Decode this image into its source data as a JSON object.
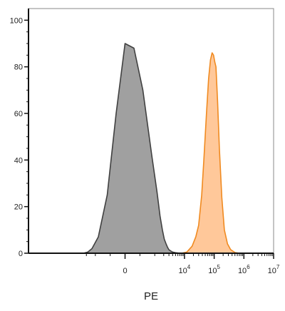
{
  "chart_data": {
    "type": "area",
    "xlabel": "PE",
    "ylabel": "",
    "x_scale": "biexponential",
    "ylim": [
      0,
      105
    ],
    "y_ticks": [
      0,
      20,
      40,
      60,
      80,
      100
    ],
    "y_tick_labels": [
      "0",
      "20",
      "40",
      "60",
      "80",
      "100"
    ],
    "x_ticks": [
      0,
      10000,
      100000,
      1000000,
      10000000
    ],
    "x_tick_labels": [
      {
        "base": "0",
        "exp": ""
      },
      {
        "base": "10",
        "exp": "4"
      },
      {
        "base": "10",
        "exp": "5"
      },
      {
        "base": "10",
        "exp": "6"
      },
      {
        "base": "10",
        "exp": "7"
      }
    ],
    "grid": false,
    "series": [
      {
        "color": "#a0a0a0",
        "edge_color": "#404040",
        "x": [
          -2500,
          -1800,
          -1300,
          -900,
          -600,
          -300,
          0,
          300,
          600,
          900,
          1200,
          1500,
          1800,
          2100,
          2400,
          2700,
          3000,
          3400,
          3800,
          4300,
          5000,
          6000,
          7500,
          9000
        ],
        "y": [
          0,
          0.5,
          2,
          7,
          25,
          60,
          90,
          88,
          70,
          42,
          26,
          16,
          10,
          6,
          4,
          2.5,
          1.5,
          1,
          0.6,
          0.4,
          0.2,
          0.1,
          0.05,
          0
        ]
      },
      {
        "color": "#ffc89a",
        "edge_color": "#f08a20",
        "x": [
          8000,
          12000,
          18000,
          24000,
          30000,
          38000,
          45000,
          55000,
          65000,
          75000,
          85000,
          95000,
          105000,
          115000,
          130000,
          150000,
          180000,
          220000,
          280000,
          360000,
          500000,
          700000
        ],
        "y": [
          0,
          0.5,
          3,
          7,
          12,
          25,
          40,
          60,
          75,
          83,
          86,
          85,
          82,
          80,
          65,
          45,
          24,
          10,
          4,
          1.5,
          0.3,
          0
        ]
      }
    ]
  }
}
